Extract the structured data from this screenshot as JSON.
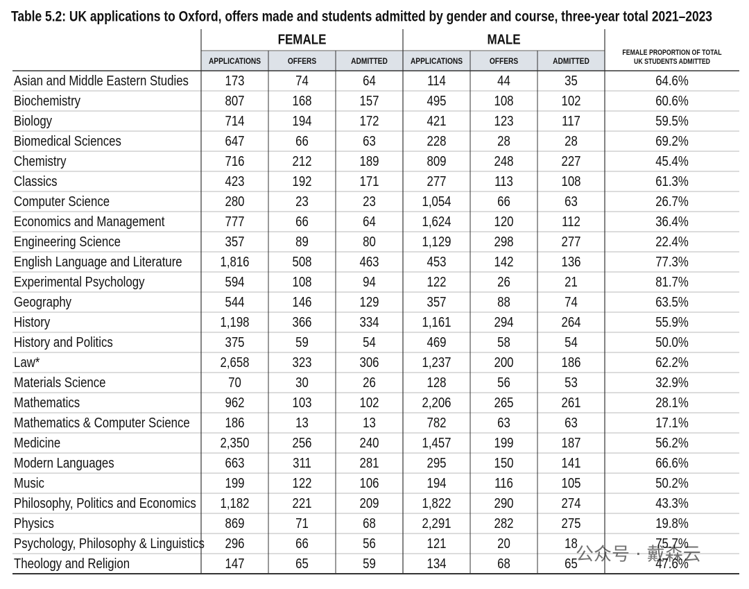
{
  "header": {
    "title": "Table 5.2: UK applications to Oxford, offers made and students admitted by gender and course, three-year total 2021–2023"
  },
  "table": {
    "groups": [
      "FEMALE",
      "MALE"
    ],
    "columns": [
      "APPLICATIONS",
      "OFFERS",
      "ADMITTED",
      "APPLICATIONS",
      "OFFERS",
      "ADMITTED"
    ],
    "last_column": [
      "FEMALE PROPORTION OF TOTAL",
      "UK STUDENTS ADMITTED"
    ],
    "rows": [
      [
        "Asian and Middle Eastern Studies",
        "173",
        "74",
        "64",
        "114",
        "44",
        "35",
        "64.6%"
      ],
      [
        "Biochemistry",
        "807",
        "168",
        "157",
        "495",
        "108",
        "102",
        "60.6%"
      ],
      [
        "Biology",
        "714",
        "194",
        "172",
        "421",
        "123",
        "117",
        "59.5%"
      ],
      [
        "Biomedical Sciences",
        "647",
        "66",
        "63",
        "228",
        "28",
        "28",
        "69.2%"
      ],
      [
        "Chemistry",
        "716",
        "212",
        "189",
        "809",
        "248",
        "227",
        "45.4%"
      ],
      [
        "Classics",
        "423",
        "192",
        "171",
        "277",
        "113",
        "108",
        "61.3%"
      ],
      [
        "Computer Science",
        "280",
        "23",
        "23",
        "1,054",
        "66",
        "63",
        "26.7%"
      ],
      [
        "Economics and Management",
        "777",
        "66",
        "64",
        "1,624",
        "120",
        "112",
        "36.4%"
      ],
      [
        "Engineering Science",
        "357",
        "89",
        "80",
        "1,129",
        "298",
        "277",
        "22.4%"
      ],
      [
        "English Language and Literature",
        "1,816",
        "508",
        "463",
        "453",
        "142",
        "136",
        "77.3%"
      ],
      [
        "Experimental Psychology",
        "594",
        "108",
        "94",
        "122",
        "26",
        "21",
        "81.7%"
      ],
      [
        "Geography",
        "544",
        "146",
        "129",
        "357",
        "88",
        "74",
        "63.5%"
      ],
      [
        "History",
        "1,198",
        "366",
        "334",
        "1,161",
        "294",
        "264",
        "55.9%"
      ],
      [
        "History and Politics",
        "375",
        "59",
        "54",
        "469",
        "58",
        "54",
        "50.0%"
      ],
      [
        "Law*",
        "2,658",
        "323",
        "306",
        "1,237",
        "200",
        "186",
        "62.2%"
      ],
      [
        "Materials Science",
        "70",
        "30",
        "26",
        "128",
        "56",
        "53",
        "32.9%"
      ],
      [
        "Mathematics",
        "962",
        "103",
        "102",
        "2,206",
        "265",
        "261",
        "28.1%"
      ],
      [
        "Mathematics & Computer Science",
        "186",
        "13",
        "13",
        "782",
        "63",
        "63",
        "17.1%"
      ],
      [
        "Medicine",
        "2,350",
        "256",
        "240",
        "1,457",
        "199",
        "187",
        "56.2%"
      ],
      [
        "Modern Languages",
        "663",
        "311",
        "281",
        "295",
        "150",
        "141",
        "66.6%"
      ],
      [
        "Music",
        "199",
        "122",
        "106",
        "194",
        "116",
        "105",
        "50.2%"
      ],
      [
        "Philosophy, Politics and Economics",
        "1,182",
        "221",
        "209",
        "1,822",
        "290",
        "274",
        "43.3%"
      ],
      [
        "Physics",
        "869",
        "71",
        "68",
        "2,291",
        "282",
        "275",
        "19.8%"
      ],
      [
        "Psychology, Philosophy & Linguistics",
        "296",
        "66",
        "56",
        "121",
        "20",
        "18",
        "75.7%"
      ],
      [
        "Theology and Religion",
        "147",
        "65",
        "59",
        "134",
        "68",
        "65",
        "47.6%"
      ]
    ]
  },
  "watermark": "公众号 · 戴森云"
}
